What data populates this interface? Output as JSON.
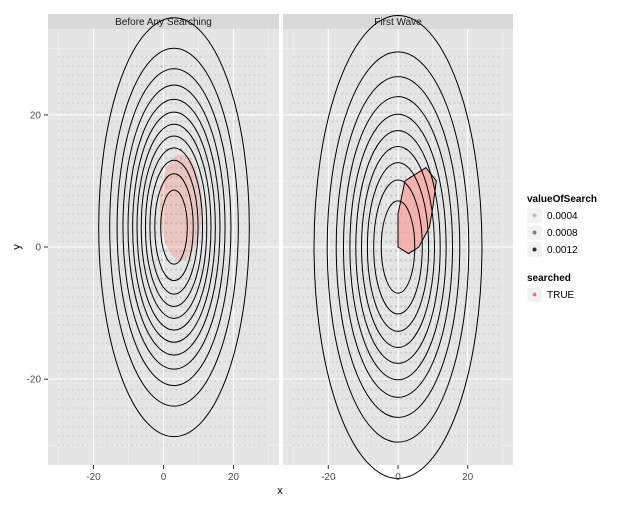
{
  "chart_data": {
    "type": "contour",
    "xlabel": "x",
    "ylabel": "y",
    "xlim": [
      -33,
      33
    ],
    "ylim": [
      -33,
      33
    ],
    "x_ticks": [
      -20,
      0,
      20
    ],
    "y_ticks": [
      -20,
      0,
      20
    ],
    "x_tick_labels": [
      "-20",
      "0",
      "20"
    ],
    "y_tick_labels": [
      "-20",
      "0",
      "20"
    ],
    "grid": true,
    "legend_placement": "right",
    "panels": [
      {
        "title": "Before Any Searching",
        "contour_center": [
          3,
          3
        ],
        "contour_sigma": [
          9.5,
          14
        ],
        "contour_levels": 12,
        "searched_center": [
          5,
          6
        ],
        "searched_radius": [
          6,
          8
        ]
      },
      {
        "title": "First Wave",
        "contour_center": [
          0,
          0
        ],
        "contour_sigma": [
          11,
          16
        ],
        "contour_levels": 10,
        "searched_polygon": [
          [
            0,
            5
          ],
          [
            2,
            10
          ],
          [
            5,
            11
          ],
          [
            8,
            12
          ],
          [
            11,
            10
          ],
          [
            10,
            6
          ],
          [
            9,
            3
          ],
          [
            6,
            0
          ],
          [
            3,
            -1
          ],
          [
            0,
            0
          ],
          [
            0,
            3
          ]
        ]
      }
    ],
    "legend": [
      {
        "title": "valueOfSearch",
        "items": [
          {
            "label": "0.0004",
            "color": "#bdbdbd"
          },
          {
            "label": "0.0008",
            "color": "#7a7a7a"
          },
          {
            "label": "0.0012",
            "color": "#303030"
          }
        ]
      },
      {
        "title": "searched",
        "items": [
          {
            "label": "TRUE",
            "color": "#f8766d"
          }
        ]
      }
    ]
  }
}
